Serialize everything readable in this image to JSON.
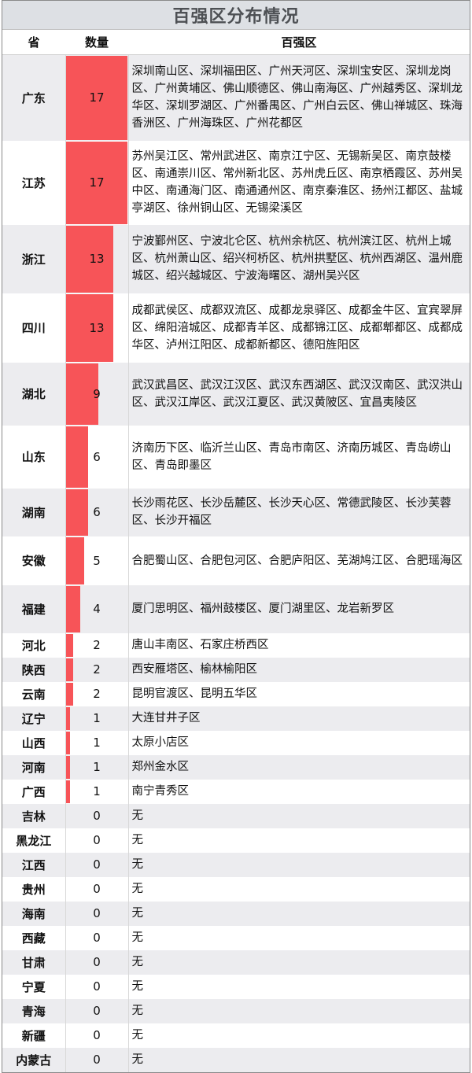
{
  "title": "百强区分布情况",
  "headers": {
    "province": "省",
    "count": "数量",
    "districts": "百强区"
  },
  "bar_color": "#f75458",
  "max_count": 17,
  "rows": [
    {
      "province": "广东",
      "count": 17,
      "districts": "深圳南山区、深圳福田区、广州天河区、深圳宝安区、深圳龙岗区、广州黄埔区、佛山顺德区、佛山南海区、广州越秀区、深圳龙华区、深圳罗湖区、广州番禺区、广州白云区、佛山禅城区、珠海香洲区、广州海珠区、广州花都区"
    },
    {
      "province": "江苏",
      "count": 17,
      "districts": "苏州吴江区、常州武进区、南京江宁区、无锡新吴区、南京鼓楼区、南通崇川区、常州新北区、苏州虎丘区、南京栖霞区、苏州吴中区、南通海门区、南通通州区、南京秦淮区、扬州江都区、盐城亭湖区、徐州铜山区、无锡梁溪区"
    },
    {
      "province": "浙江",
      "count": 13,
      "districts": "宁波鄞州区、宁波北仑区、杭州余杭区、杭州滨江区、杭州上城区、杭州萧山区、绍兴柯桥区、杭州拱墅区、杭州西湖区、温州鹿城区、绍兴越城区、宁波海曙区、湖州吴兴区"
    },
    {
      "province": "四川",
      "count": 13,
      "districts": "成都武侯区、成都双流区、成都龙泉驿区、成都金牛区、宜宾翠屏区、绵阳涪城区、成都青羊区、成都锦江区、成都郫都区、成都成华区、泸州江阳区、成都新都区、德阳旌阳区"
    },
    {
      "province": "湖北",
      "count": 9,
      "districts": "武汉武昌区、武汉江汉区、武汉东西湖区、武汉汉南区、武汉洪山区、武汉江岸区、武汉江夏区、武汉黄陂区、宜昌夷陵区"
    },
    {
      "province": "山东",
      "count": 6,
      "districts": "济南历下区、临沂兰山区、青岛市南区、济南历城区、青岛崂山区、青岛即墨区"
    },
    {
      "province": "湖南",
      "count": 6,
      "districts": "长沙雨花区、长沙岳麓区、长沙天心区、常德武陵区、长沙芙蓉区、长沙开福区"
    },
    {
      "province": "安徽",
      "count": 5,
      "districts": "合肥蜀山区、合肥包河区、合肥庐阳区、芜湖鸠江区、合肥瑶海区"
    },
    {
      "province": "福建",
      "count": 4,
      "districts": "厦门思明区、福州鼓楼区、厦门湖里区、龙岩新罗区"
    },
    {
      "province": "河北",
      "count": 2,
      "districts": "唐山丰南区、石家庄桥西区"
    },
    {
      "province": "陕西",
      "count": 2,
      "districts": "西安雁塔区、榆林榆阳区"
    },
    {
      "province": "云南",
      "count": 2,
      "districts": "昆明官渡区、昆明五华区"
    },
    {
      "province": "辽宁",
      "count": 1,
      "districts": "大连甘井子区"
    },
    {
      "province": "山西",
      "count": 1,
      "districts": "太原小店区"
    },
    {
      "province": "河南",
      "count": 1,
      "districts": "郑州金水区"
    },
    {
      "province": "广西",
      "count": 1,
      "districts": "南宁青秀区"
    },
    {
      "province": "吉林",
      "count": 0,
      "districts": "无"
    },
    {
      "province": "黑龙江",
      "count": 0,
      "districts": "无"
    },
    {
      "province": "江西",
      "count": 0,
      "districts": "无"
    },
    {
      "province": "贵州",
      "count": 0,
      "districts": "无"
    },
    {
      "province": "海南",
      "count": 0,
      "districts": "无"
    },
    {
      "province": "西藏",
      "count": 0,
      "districts": "无"
    },
    {
      "province": "甘肃",
      "count": 0,
      "districts": "无"
    },
    {
      "province": "宁夏",
      "count": 0,
      "districts": "无"
    },
    {
      "province": "青海",
      "count": 0,
      "districts": "无"
    },
    {
      "province": "新疆",
      "count": 0,
      "districts": "无"
    },
    {
      "province": "内蒙古",
      "count": 0,
      "districts": "无"
    }
  ]
}
